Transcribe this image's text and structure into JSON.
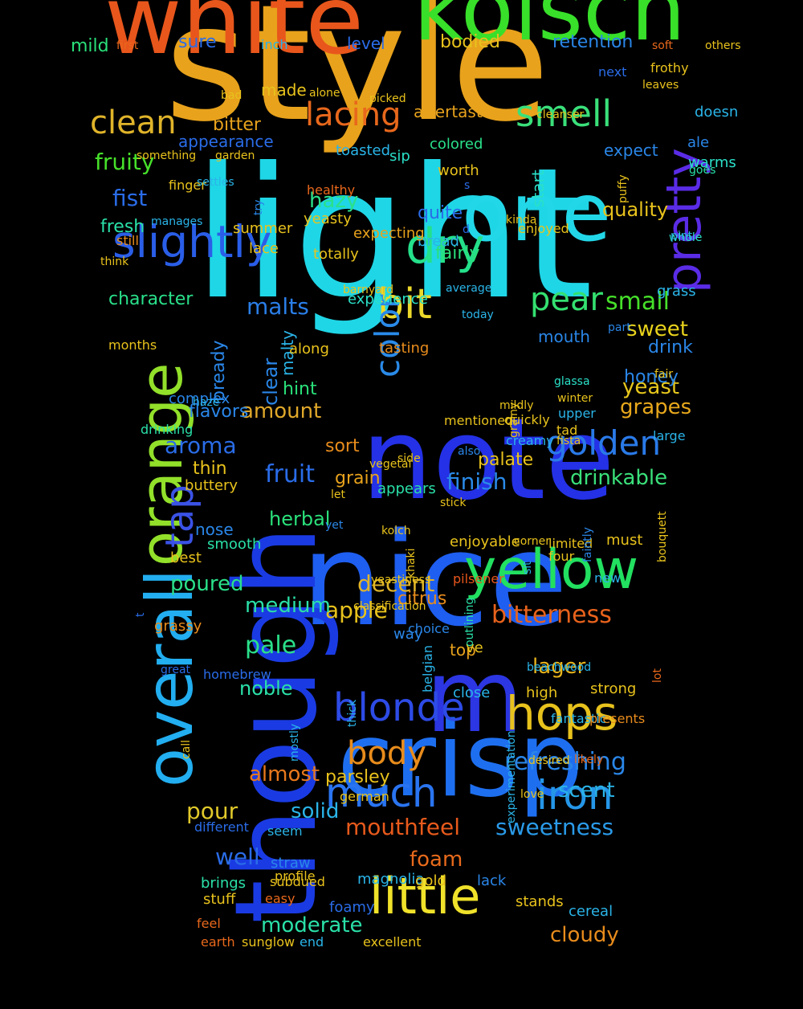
{
  "words": [
    {
      "text": "style",
      "color": "#e8a21c"
    },
    {
      "text": "light",
      "color": "#1fd6e6"
    },
    {
      "text": "note",
      "color": "#2431e6"
    },
    {
      "text": "nice",
      "color": "#1e5ef0"
    },
    {
      "text": "though",
      "color": "#1a3be3"
    },
    {
      "text": "white",
      "color": "#e8561c"
    },
    {
      "text": "kolsch",
      "color": "#38e02a"
    },
    {
      "text": "one",
      "color": "#22d7e8"
    },
    {
      "text": "crisp",
      "color": "#1e6ff0"
    },
    {
      "text": "m",
      "color": "#2c36e2"
    },
    {
      "text": "overall",
      "color": "#22aef0"
    },
    {
      "text": "yellow",
      "color": "#22e060"
    },
    {
      "text": "orange",
      "color": "#92e02a"
    },
    {
      "text": "hops",
      "color": "#e8c21c"
    },
    {
      "text": "dry",
      "color": "#24e08a"
    },
    {
      "text": "little",
      "color": "#f0e22a"
    },
    {
      "text": "slightly",
      "color": "#2a5ee8"
    },
    {
      "text": "pretty",
      "color": "#5a2ce6"
    },
    {
      "text": "blonde",
      "color": "#2d4be6"
    },
    {
      "text": "iron",
      "color": "#2596e8"
    },
    {
      "text": "bit",
      "color": "#ecd82a"
    },
    {
      "text": "much",
      "color": "#2a74f0"
    },
    {
      "text": "golden",
      "color": "#2a7ae8"
    },
    {
      "text": "pear",
      "color": "#34e070"
    },
    {
      "text": "smell",
      "color": "#3ae07a"
    },
    {
      "text": "lacing",
      "color": "#e8681c"
    },
    {
      "text": "clean",
      "color": "#e0b42a"
    },
    {
      "text": "body",
      "color": "#e88c1c"
    },
    {
      "text": "tap",
      "color": "#3a52e6"
    },
    {
      "text": "color",
      "color": "#2a8ae8"
    },
    {
      "text": "refreshing",
      "color": "#2a86e8"
    },
    {
      "text": "bitterness",
      "color": "#e8621c"
    },
    {
      "text": "fruit",
      "color": "#2a6ce8"
    },
    {
      "text": "mouthfeel",
      "color": "#e85a1c"
    },
    {
      "text": "sweetness",
      "color": "#2a9ae8"
    },
    {
      "text": "finish",
      "color": "#2a8ae8"
    },
    {
      "text": "drinkable",
      "color": "#3ae07a"
    },
    {
      "text": "cloudy",
      "color": "#e88c1c"
    },
    {
      "text": "foam",
      "color": "#e86a1c"
    },
    {
      "text": "decent",
      "color": "#e0b42a"
    },
    {
      "text": "apple",
      "color": "#e8c21c"
    },
    {
      "text": "moderate",
      "color": "#2ae0a8"
    },
    {
      "text": "small",
      "color": "#46e02a"
    },
    {
      "text": "sweet",
      "color": "#e8d21c"
    },
    {
      "text": "yeast",
      "color": "#e8c81c"
    },
    {
      "text": "grapes",
      "color": "#e8a81c"
    },
    {
      "text": "malts",
      "color": "#2a7ee8"
    },
    {
      "text": "amount",
      "color": "#e0a82a"
    },
    {
      "text": "aroma",
      "color": "#2a6ce8"
    },
    {
      "text": "well",
      "color": "#2a6ce8"
    },
    {
      "text": "pour",
      "color": "#e0c82a"
    },
    {
      "text": "scent",
      "color": "#2ab4e8"
    },
    {
      "text": "almost",
      "color": "#e8781c"
    },
    {
      "text": "solid",
      "color": "#2ab4e8"
    },
    {
      "text": "lager",
      "color": "#e8b41c"
    },
    {
      "text": "pale",
      "color": "#2ae08a"
    },
    {
      "text": "medium",
      "color": "#2ae0a8"
    },
    {
      "text": "poured",
      "color": "#2ae08a"
    },
    {
      "text": "noble",
      "color": "#2ae0a8"
    },
    {
      "text": "herbal",
      "color": "#2ae07a"
    },
    {
      "text": "hazy",
      "color": "#2ae08a"
    },
    {
      "text": "fist",
      "color": "#2a6ce8"
    },
    {
      "text": "fruity",
      "color": "#46e02a"
    },
    {
      "text": "character",
      "color": "#2ae08a"
    },
    {
      "text": "quality",
      "color": "#e8c21c"
    },
    {
      "text": "retention",
      "color": "#2a86e8"
    },
    {
      "text": "bodied",
      "color": "#e8c21c"
    },
    {
      "text": "mild",
      "color": "#2ae07a"
    },
    {
      "text": "sure",
      "color": "#2a6ce8"
    },
    {
      "text": "level",
      "color": "#2a6ce8"
    },
    {
      "text": "bitter",
      "color": "#e8a21c"
    },
    {
      "text": "appearance",
      "color": "#2a6ce8"
    },
    {
      "text": "made",
      "color": "#e8c21c"
    },
    {
      "text": "aftertaste",
      "color": "#e8a21c"
    },
    {
      "text": "colored",
      "color": "#2ae08a"
    },
    {
      "text": "toasted",
      "color": "#2ab4e8"
    },
    {
      "text": "worth",
      "color": "#e8c21c"
    },
    {
      "text": "sip",
      "color": "#2ae0c8"
    },
    {
      "text": "expect",
      "color": "#2a86e8"
    },
    {
      "text": "doesn",
      "color": "#2ab4e8"
    },
    {
      "text": "ale",
      "color": "#2a86e8"
    },
    {
      "text": "warms",
      "color": "#2ae0c8"
    },
    {
      "text": "start",
      "color": "#2ae0c8"
    },
    {
      "text": "quite",
      "color": "#2a6ce8"
    },
    {
      "text": "fairly",
      "color": "#2ae07a"
    },
    {
      "text": "mouth",
      "color": "#2a86e8"
    },
    {
      "text": "malty",
      "color": "#2ab4e8"
    },
    {
      "text": "hint",
      "color": "#2ae07a"
    },
    {
      "text": "clear",
      "color": "#2a86e8"
    },
    {
      "text": "bready",
      "color": "#2a86e8"
    },
    {
      "text": "flavors",
      "color": "#2a86e8"
    },
    {
      "text": "honey",
      "color": "#2a86e8"
    },
    {
      "text": "drink",
      "color": "#2a86e8"
    },
    {
      "text": "grass",
      "color": "#2ab4e8"
    },
    {
      "text": "fresh",
      "color": "#2ae0a8"
    },
    {
      "text": "still",
      "color": "#e88c1c"
    },
    {
      "text": "summer",
      "color": "#e8c21c"
    },
    {
      "text": "lace",
      "color": "#e8c21c"
    },
    {
      "text": "bread",
      "color": "#2ab4e8"
    },
    {
      "text": "palate",
      "color": "#e8c21c"
    },
    {
      "text": "grain",
      "color": "#e8a21c"
    },
    {
      "text": "thin",
      "color": "#e8c21c"
    },
    {
      "text": "sort",
      "color": "#e88c1c"
    },
    {
      "text": "nose",
      "color": "#2a86e8"
    },
    {
      "text": "best",
      "color": "#e8c21c"
    },
    {
      "text": "smooth",
      "color": "#2ae0a8"
    },
    {
      "text": "parsley",
      "color": "#e8c21c"
    },
    {
      "text": "grassy",
      "color": "#e88c1c"
    },
    {
      "text": "citrus",
      "color": "#e88c1c"
    },
    {
      "text": "way",
      "color": "#2a86e8"
    },
    {
      "text": "top",
      "color": "#e8a21c"
    },
    {
      "text": "ve",
      "color": "#e8c21c"
    },
    {
      "text": "close",
      "color": "#2ab4e8"
    },
    {
      "text": "high",
      "color": "#e8c21c"
    },
    {
      "text": "strong",
      "color": "#e8c21c"
    },
    {
      "text": "complex",
      "color": "#2a86e8"
    },
    {
      "text": "buttery",
      "color": "#e8c21c"
    },
    {
      "text": "along",
      "color": "#e8c21c"
    },
    {
      "text": "tasting",
      "color": "#e88c1c"
    },
    {
      "text": "experience",
      "color": "#2ae0c8"
    },
    {
      "text": "totally",
      "color": "#e8c21c"
    },
    {
      "text": "expecting",
      "color": "#e8a21c"
    },
    {
      "text": "yeasty",
      "color": "#e8c21c"
    },
    {
      "text": "appears",
      "color": "#2ae0a8"
    },
    {
      "text": "enjoyable",
      "color": "#e8c21c"
    },
    {
      "text": "brings",
      "color": "#2ae0a8"
    },
    {
      "text": "stuff",
      "color": "#e8c21c"
    },
    {
      "text": "straw",
      "color": "#2a86e8"
    },
    {
      "text": "profile",
      "color": "#e8c21c"
    },
    {
      "text": "magnolia",
      "color": "#2ab4e8"
    },
    {
      "text": "gold",
      "color": "#e8c21c"
    },
    {
      "text": "lack",
      "color": "#2a86e8"
    },
    {
      "text": "stands",
      "color": "#e8c21c"
    },
    {
      "text": "cereal",
      "color": "#2ab4e8"
    },
    {
      "text": "foamy",
      "color": "#2a6ce8"
    },
    {
      "text": "easy",
      "color": "#e8681c"
    },
    {
      "text": "earth",
      "color": "#e8681c"
    },
    {
      "text": "feel",
      "color": "#e8681c"
    },
    {
      "text": "sunglow",
      "color": "#e8c21c"
    },
    {
      "text": "end",
      "color": "#2ab4e8"
    },
    {
      "text": "excellent",
      "color": "#e8c21c"
    },
    {
      "text": "subdued",
      "color": "#e8c21c"
    },
    {
      "text": "seem",
      "color": "#2ab4e8"
    },
    {
      "text": "different",
      "color": "#2a6ce8"
    },
    {
      "text": "german",
      "color": "#e8c21c"
    },
    {
      "text": "desired",
      "color": "#e8c21c"
    },
    {
      "text": "fantastic",
      "color": "#2ab4e8"
    },
    {
      "text": "presents",
      "color": "#e88c1c"
    },
    {
      "text": "new",
      "color": "#2ab4e8"
    },
    {
      "text": "limited",
      "color": "#e8c21c"
    },
    {
      "text": "four",
      "color": "#e8c21c"
    },
    {
      "text": "must",
      "color": "#e8c21c"
    },
    {
      "text": "pilsener",
      "color": "#e8561c"
    },
    {
      "text": "yeastiness",
      "color": "#e8c21c"
    },
    {
      "text": "classification",
      "color": "#e8c21c"
    },
    {
      "text": "choice",
      "color": "#2a86e8"
    },
    {
      "text": "khaki",
      "color": "#e8c21c"
    },
    {
      "text": "kolch",
      "color": "#e8c21c"
    },
    {
      "text": "yet",
      "color": "#2a86e8"
    },
    {
      "text": "let",
      "color": "#e8c21c"
    },
    {
      "text": "mentioned",
      "color": "#e8c21c"
    },
    {
      "text": "quickly",
      "color": "#e8c21c"
    },
    {
      "text": "creamy",
      "color": "#2ab4e8"
    },
    {
      "text": "also",
      "color": "#2a86e8"
    },
    {
      "text": "drinking",
      "color": "#2ae0a8"
    },
    {
      "text": "mildly",
      "color": "#e8c21c"
    },
    {
      "text": "upper",
      "color": "#2ab4e8"
    },
    {
      "text": "tad",
      "color": "#e8c21c"
    },
    {
      "text": "winter",
      "color": "#e8c21c"
    },
    {
      "text": "glassa",
      "color": "#2ae0c8"
    },
    {
      "text": "large",
      "color": "#2ab4e8"
    },
    {
      "text": "part",
      "color": "#2a86e8"
    },
    {
      "text": "whole",
      "color": "#2ae0c8"
    },
    {
      "text": "pint",
      "color": "#2ab4e8"
    },
    {
      "text": "enjoyed",
      "color": "#e8c21c"
    },
    {
      "text": "kinda",
      "color": "#e8c21c"
    },
    {
      "text": "today",
      "color": "#2ab4e8"
    },
    {
      "text": "months",
      "color": "#e8c21c"
    },
    {
      "text": "finger",
      "color": "#e8c21c"
    },
    {
      "text": "settles",
      "color": "#2ab4e8"
    },
    {
      "text": "garden",
      "color": "#e8c21c"
    },
    {
      "text": "something",
      "color": "#e8c21c"
    },
    {
      "text": "healthy",
      "color": "#e8681c"
    },
    {
      "text": "manages",
      "color": "#2ab4e8"
    },
    {
      "text": "think",
      "color": "#e8c21c"
    },
    {
      "text": "try",
      "color": "#2a86e8"
    },
    {
      "text": "haze",
      "color": "#2ab4e8"
    },
    {
      "text": "bad",
      "color": "#e8c21c"
    },
    {
      "text": "alone",
      "color": "#e8c21c"
    },
    {
      "text": "picked",
      "color": "#e8c21c"
    },
    {
      "text": "leaves",
      "color": "#e8c21c"
    },
    {
      "text": "cleanser",
      "color": "#e8c21c"
    },
    {
      "text": "next",
      "color": "#2a6ce8"
    },
    {
      "text": "soft",
      "color": "#e8681c"
    },
    {
      "text": "others",
      "color": "#e8c21c"
    },
    {
      "text": "goes",
      "color": "#2ae0a8"
    },
    {
      "text": "puffy",
      "color": "#e8c21c"
    },
    {
      "text": "inch",
      "color": "#2ab4e8"
    },
    {
      "text": "first",
      "color": "#e8681c"
    },
    {
      "text": "average",
      "color": "#2ab4e8"
    },
    {
      "text": "barnyard",
      "color": "#e8c21c"
    },
    {
      "text": "fista",
      "color": "#e8c21c"
    },
    {
      "text": "stick",
      "color": "#e8c21c"
    },
    {
      "text": "belgian",
      "color": "#2ab4e8"
    },
    {
      "text": "thick",
      "color": "#2ab4e8"
    },
    {
      "text": "mostly",
      "color": "#2ab4e8"
    },
    {
      "text": "sit",
      "color": "#2ab4e8"
    },
    {
      "text": "faintly",
      "color": "#2a86e8"
    },
    {
      "text": "homebrew",
      "color": "#2a6ce8"
    },
    {
      "text": "great",
      "color": "#2a6ce8"
    },
    {
      "text": "side",
      "color": "#e8c21c"
    },
    {
      "text": "vegetal",
      "color": "#e8c21c"
    },
    {
      "text": "corner",
      "color": "#e8c21c"
    },
    {
      "text": "grainy",
      "color": "#e8c21c"
    },
    {
      "text": "d",
      "color": "#2a6ce8"
    },
    {
      "text": "s",
      "color": "#2a6ce8"
    },
    {
      "text": "t",
      "color": "#2a6ce8"
    },
    {
      "text": "lot",
      "color": "#e8681c"
    },
    {
      "text": "call",
      "color": "#e8c21c"
    },
    {
      "text": "beachwood",
      "color": "#2ab4e8"
    },
    {
      "text": "outlining",
      "color": "#2ae0a8"
    },
    {
      "text": "experimentation",
      "color": "#2ab4e8"
    },
    {
      "text": "love",
      "color": "#e8c21c"
    },
    {
      "text": "likely",
      "color": "#e8681c"
    },
    {
      "text": "fair",
      "color": "#e8c21c"
    },
    {
      "text": "frothy",
      "color": "#e8c21c"
    },
    {
      "text": "bouquett",
      "color": "#e8c21c"
    },
    {
      "text": "vastly",
      "color": "#2ab4e8"
    },
    {
      "text": "mild",
      "color": "#2ae07a"
    },
    {
      "text": "odd",
      "color": "#e8c21c"
    }
  ]
}
